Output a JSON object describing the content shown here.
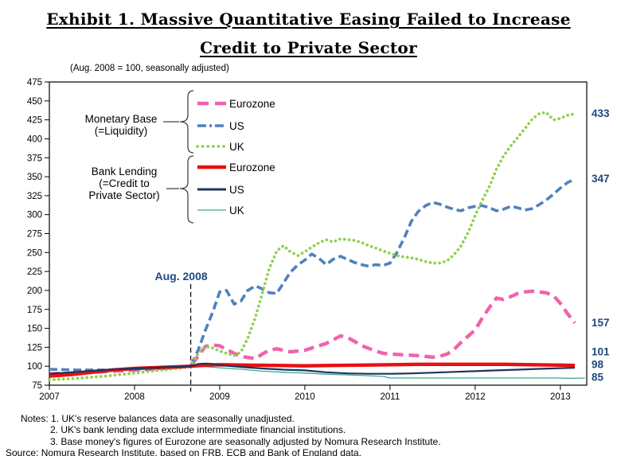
{
  "title": {
    "line1": "Exhibit 1. Massive Quantitative Easing Failed to Increase",
    "line2": "Credit to Private Sector"
  },
  "subtitle": "(Aug. 2008 = 100, seasonally adjusted)",
  "notes": {
    "line1": "Notes: 1. UK's reserve balances data are seasonally unadjusted.",
    "line2": "2. UK's bank lending data exclude intermmediate financial institutions.",
    "line3": "3. Base money's figures of Eurozone are seasonally adjusted by Nomura Research Institute.",
    "source": "Source: Nomura Research Institute, based on FRB, ECB and Bank of England data."
  },
  "chart_data": {
    "type": "line",
    "title": "",
    "xlabel": "",
    "ylabel": "",
    "ylim": [
      75,
      475
    ],
    "ytick_step": 25,
    "x_ticks": [
      2007,
      2008,
      2009,
      2010,
      2011,
      2012,
      2013
    ],
    "xlim": [
      2007,
      2013.31
    ],
    "grid": false,
    "legend_position": "top-left-inside",
    "annotation": {
      "label": "Aug. 2008",
      "x": 2008.66,
      "color": "#1f497d"
    },
    "end_label_color": "#1f497d",
    "legend_groups": [
      {
        "label_lines": [
          "Monetary Base",
          "(=Liquidity)"
        ],
        "series_ids": [
          "eurozone_mb",
          "us_mb",
          "uk_mb"
        ]
      },
      {
        "label_lines": [
          "Bank Lending",
          "(=Credit to",
          "Private Sector)"
        ],
        "series_ids": [
          "eurozone_bl",
          "us_bl",
          "uk_bl"
        ]
      }
    ],
    "series": [
      {
        "id": "eurozone_mb",
        "name": "Eurozone Monetary Base",
        "label": "Eurozone",
        "color": "#f062ae",
        "style": "dashed-long",
        "width": 4.4,
        "end_label": 157,
        "points": [
          [
            2007.0,
            90
          ],
          [
            2007.33,
            91
          ],
          [
            2007.66,
            93
          ],
          [
            2008.0,
            95
          ],
          [
            2008.33,
            97
          ],
          [
            2008.66,
            100
          ],
          [
            2008.75,
            114
          ],
          [
            2008.83,
            126
          ],
          [
            2008.92,
            128
          ],
          [
            2009.0,
            127
          ],
          [
            2009.08,
            122
          ],
          [
            2009.17,
            117
          ],
          [
            2009.25,
            113
          ],
          [
            2009.42,
            110
          ],
          [
            2009.5,
            116
          ],
          [
            2009.58,
            121
          ],
          [
            2009.67,
            123
          ],
          [
            2009.75,
            121
          ],
          [
            2009.83,
            119
          ],
          [
            2010.0,
            121
          ],
          [
            2010.08,
            124
          ],
          [
            2010.25,
            130
          ],
          [
            2010.42,
            140
          ],
          [
            2010.5,
            138
          ],
          [
            2010.58,
            133
          ],
          [
            2010.67,
            127
          ],
          [
            2010.83,
            120
          ],
          [
            2010.92,
            117
          ],
          [
            2011.0,
            116
          ],
          [
            2011.17,
            115
          ],
          [
            2011.33,
            114
          ],
          [
            2011.5,
            112
          ],
          [
            2011.58,
            113
          ],
          [
            2011.67,
            116
          ],
          [
            2011.75,
            122
          ],
          [
            2011.83,
            131
          ],
          [
            2011.92,
            140
          ],
          [
            2012.0,
            148
          ],
          [
            2012.08,
            163
          ],
          [
            2012.17,
            178
          ],
          [
            2012.25,
            190
          ],
          [
            2012.33,
            188
          ],
          [
            2012.42,
            192
          ],
          [
            2012.5,
            196
          ],
          [
            2012.58,
            198
          ],
          [
            2012.67,
            199
          ],
          [
            2012.75,
            198
          ],
          [
            2012.83,
            197
          ],
          [
            2012.92,
            193
          ],
          [
            2013.0,
            183
          ],
          [
            2013.08,
            170
          ],
          [
            2013.17,
            157
          ]
        ]
      },
      {
        "id": "us_mb",
        "name": "US Monetary Base",
        "label": "US",
        "color": "#4f81bd",
        "style": "dashed",
        "width": 3.6,
        "end_label": 347,
        "points": [
          [
            2007.0,
            96
          ],
          [
            2007.33,
            95
          ],
          [
            2007.66,
            95
          ],
          [
            2008.0,
            96
          ],
          [
            2008.33,
            97
          ],
          [
            2008.58,
            99
          ],
          [
            2008.66,
            100
          ],
          [
            2008.75,
            122
          ],
          [
            2008.83,
            147
          ],
          [
            2008.92,
            172
          ],
          [
            2009.0,
            198
          ],
          [
            2009.08,
            200
          ],
          [
            2009.17,
            182
          ],
          [
            2009.25,
            186
          ],
          [
            2009.33,
            200
          ],
          [
            2009.42,
            206
          ],
          [
            2009.5,
            202
          ],
          [
            2009.58,
            197
          ],
          [
            2009.67,
            196
          ],
          [
            2009.75,
            210
          ],
          [
            2009.83,
            224
          ],
          [
            2009.92,
            234
          ],
          [
            2010.0,
            240
          ],
          [
            2010.08,
            248
          ],
          [
            2010.17,
            242
          ],
          [
            2010.25,
            234
          ],
          [
            2010.33,
            241
          ],
          [
            2010.42,
            245
          ],
          [
            2010.5,
            241
          ],
          [
            2010.58,
            237
          ],
          [
            2010.67,
            234
          ],
          [
            2010.75,
            232
          ],
          [
            2010.83,
            234
          ],
          [
            2010.92,
            233
          ],
          [
            2011.0,
            236
          ],
          [
            2011.08,
            250
          ],
          [
            2011.17,
            270
          ],
          [
            2011.25,
            291
          ],
          [
            2011.33,
            304
          ],
          [
            2011.42,
            312
          ],
          [
            2011.5,
            316
          ],
          [
            2011.58,
            314
          ],
          [
            2011.67,
            310
          ],
          [
            2011.75,
            307
          ],
          [
            2011.83,
            305
          ],
          [
            2011.92,
            309
          ],
          [
            2012.0,
            311
          ],
          [
            2012.08,
            312
          ],
          [
            2012.17,
            309
          ],
          [
            2012.25,
            305
          ],
          [
            2012.33,
            307
          ],
          [
            2012.42,
            311
          ],
          [
            2012.5,
            309
          ],
          [
            2012.58,
            306
          ],
          [
            2012.67,
            308
          ],
          [
            2012.75,
            313
          ],
          [
            2012.83,
            319
          ],
          [
            2012.92,
            327
          ],
          [
            2013.0,
            335
          ],
          [
            2013.08,
            342
          ],
          [
            2013.17,
            347
          ]
        ]
      },
      {
        "id": "uk_mb",
        "name": "UK Monetary Base",
        "label": "UK",
        "color": "#92d050",
        "style": "dotted",
        "width": 3.7,
        "end_label": 433,
        "points": [
          [
            2007.0,
            82
          ],
          [
            2007.33,
            84
          ],
          [
            2007.66,
            87
          ],
          [
            2008.0,
            91
          ],
          [
            2008.33,
            95
          ],
          [
            2008.58,
            98
          ],
          [
            2008.66,
            101
          ],
          [
            2008.75,
            117
          ],
          [
            2008.83,
            126
          ],
          [
            2008.92,
            124
          ],
          [
            2009.0,
            120
          ],
          [
            2009.08,
            117
          ],
          [
            2009.17,
            114
          ],
          [
            2009.25,
            119
          ],
          [
            2009.33,
            137
          ],
          [
            2009.42,
            165
          ],
          [
            2009.5,
            196
          ],
          [
            2009.58,
            228
          ],
          [
            2009.67,
            252
          ],
          [
            2009.75,
            259
          ],
          [
            2009.83,
            251
          ],
          [
            2009.92,
            246
          ],
          [
            2010.0,
            251
          ],
          [
            2010.08,
            257
          ],
          [
            2010.17,
            263
          ],
          [
            2010.25,
            267
          ],
          [
            2010.33,
            264
          ],
          [
            2010.42,
            268
          ],
          [
            2010.5,
            267
          ],
          [
            2010.58,
            266
          ],
          [
            2010.67,
            263
          ],
          [
            2010.75,
            259
          ],
          [
            2010.83,
            256
          ],
          [
            2010.92,
            252
          ],
          [
            2011.0,
            249
          ],
          [
            2011.08,
            246
          ],
          [
            2011.17,
            244
          ],
          [
            2011.25,
            243
          ],
          [
            2011.33,
            241
          ],
          [
            2011.42,
            238
          ],
          [
            2011.5,
            236
          ],
          [
            2011.58,
            236
          ],
          [
            2011.67,
            239
          ],
          [
            2011.75,
            247
          ],
          [
            2011.83,
            258
          ],
          [
            2011.92,
            277
          ],
          [
            2012.0,
            299
          ],
          [
            2012.08,
            318
          ],
          [
            2012.17,
            338
          ],
          [
            2012.25,
            360
          ],
          [
            2012.33,
            377
          ],
          [
            2012.42,
            391
          ],
          [
            2012.5,
            402
          ],
          [
            2012.58,
            413
          ],
          [
            2012.67,
            426
          ],
          [
            2012.75,
            433
          ],
          [
            2012.83,
            435
          ],
          [
            2012.92,
            425
          ],
          [
            2013.0,
            427
          ],
          [
            2013.08,
            431
          ],
          [
            2013.17,
            433
          ]
        ]
      },
      {
        "id": "eurozone_bl",
        "name": "Eurozone Bank Lending",
        "label": "Eurozone",
        "color": "#e90f0f",
        "style": "solid",
        "width": 4.4,
        "end_label": 101,
        "points": [
          [
            2007.0,
            87
          ],
          [
            2007.25,
            89
          ],
          [
            2007.5,
            92
          ],
          [
            2007.75,
            95
          ],
          [
            2008.0,
            97
          ],
          [
            2008.33,
            98.5
          ],
          [
            2008.66,
            100
          ],
          [
            2008.83,
            101.5
          ],
          [
            2009.0,
            102
          ],
          [
            2009.33,
            101.5
          ],
          [
            2009.66,
            101
          ],
          [
            2010.0,
            100.5
          ],
          [
            2010.33,
            101
          ],
          [
            2010.66,
            101.5
          ],
          [
            2011.0,
            102
          ],
          [
            2011.33,
            102.5
          ],
          [
            2011.66,
            102.5
          ],
          [
            2012.0,
            102.5
          ],
          [
            2012.33,
            102.5
          ],
          [
            2012.66,
            102
          ],
          [
            2013.0,
            101.5
          ],
          [
            2013.17,
            101
          ]
        ]
      },
      {
        "id": "us_bl",
        "name": "US Bank Lending",
        "label": "US",
        "color": "#1c355e",
        "style": "solid",
        "width": 2.2,
        "end_label": 98,
        "points": [
          [
            2007.0,
            90
          ],
          [
            2007.25,
            92
          ],
          [
            2007.5,
            94
          ],
          [
            2007.75,
            96
          ],
          [
            2008.0,
            97
          ],
          [
            2008.33,
            98.5
          ],
          [
            2008.66,
            100
          ],
          [
            2008.75,
            103
          ],
          [
            2008.83,
            103.5
          ],
          [
            2008.92,
            103
          ],
          [
            2009.0,
            101.5
          ],
          [
            2009.25,
            99
          ],
          [
            2009.5,
            97
          ],
          [
            2009.75,
            95.5
          ],
          [
            2010.0,
            94.5
          ],
          [
            2010.25,
            92
          ],
          [
            2010.5,
            90.5
          ],
          [
            2010.75,
            90
          ],
          [
            2011.0,
            90
          ],
          [
            2011.25,
            90.5
          ],
          [
            2011.5,
            91.5
          ],
          [
            2011.75,
            92.5
          ],
          [
            2012.0,
            93.5
          ],
          [
            2012.25,
            94.5
          ],
          [
            2012.5,
            95.5
          ],
          [
            2012.75,
            96.5
          ],
          [
            2013.0,
            97.5
          ],
          [
            2013.17,
            98
          ]
        ]
      },
      {
        "id": "uk_bl",
        "name": "UK Bank Lending",
        "label": "UK",
        "color": "#3aa98f",
        "style": "solid",
        "width": 1.3,
        "end_label": 85,
        "points": [
          [
            2007.0,
            89
          ],
          [
            2007.25,
            91
          ],
          [
            2007.5,
            93
          ],
          [
            2007.75,
            95
          ],
          [
            2008.0,
            96.5
          ],
          [
            2008.33,
            98
          ],
          [
            2008.66,
            100
          ],
          [
            2008.83,
            99.5
          ],
          [
            2009.0,
            98
          ],
          [
            2009.25,
            96
          ],
          [
            2009.5,
            93.5
          ],
          [
            2009.75,
            92
          ],
          [
            2010.0,
            91
          ],
          [
            2010.25,
            89.5
          ],
          [
            2010.5,
            88.5
          ],
          [
            2010.75,
            87.5
          ],
          [
            2010.92,
            86.5
          ],
          [
            2011.0,
            84.5
          ],
          [
            2011.5,
            84.5
          ],
          [
            2012.0,
            84.5
          ],
          [
            2012.5,
            84.5
          ],
          [
            2013.0,
            84.5
          ],
          [
            2013.1,
            84
          ],
          [
            2013.29,
            84.5
          ]
        ]
      }
    ]
  }
}
